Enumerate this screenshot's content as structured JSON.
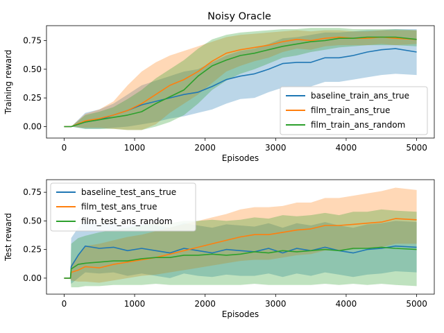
{
  "chart_data": [
    {
      "type": "line",
      "title": "Noisy Oracle",
      "xlabel": "Episodes",
      "ylabel": "Training reward",
      "xlim": [
        -250,
        5250
      ],
      "ylim": [
        -0.1,
        0.88
      ],
      "xticks": [
        0,
        1000,
        2000,
        3000,
        4000,
        5000
      ],
      "yticks": [
        0.0,
        0.25,
        0.5,
        0.75
      ],
      "ytick_labels": [
        "0.00",
        "0.25",
        "0.50",
        "0.75"
      ],
      "legend_position": "lower right",
      "x": [
        0,
        100,
        300,
        500,
        700,
        900,
        1100,
        1300,
        1500,
        1700,
        1900,
        2100,
        2300,
        2500,
        2700,
        2900,
        3100,
        3300,
        3500,
        3700,
        3900,
        4100,
        4300,
        4500,
        4700,
        5000
      ],
      "series": [
        {
          "name": "baseline_train_ans_true",
          "color": "#1f77b4",
          "values": [
            0.0,
            0.0,
            0.04,
            0.06,
            0.1,
            0.14,
            0.19,
            0.22,
            0.25,
            0.28,
            0.3,
            0.35,
            0.41,
            0.44,
            0.46,
            0.5,
            0.55,
            0.56,
            0.56,
            0.6,
            0.6,
            0.62,
            0.65,
            0.67,
            0.68,
            0.65
          ],
          "lower": [
            0.0,
            0.0,
            -0.02,
            -0.02,
            -0.01,
            0.0,
            0.02,
            0.04,
            0.07,
            0.09,
            0.12,
            0.15,
            0.2,
            0.24,
            0.25,
            0.3,
            0.34,
            0.35,
            0.35,
            0.39,
            0.39,
            0.41,
            0.43,
            0.45,
            0.46,
            0.45
          ],
          "upper": [
            0.0,
            0.0,
            0.12,
            0.15,
            0.2,
            0.28,
            0.36,
            0.4,
            0.44,
            0.48,
            0.5,
            0.56,
            0.62,
            0.66,
            0.68,
            0.72,
            0.77,
            0.78,
            0.8,
            0.82,
            0.82,
            0.83,
            0.84,
            0.84,
            0.85,
            0.85
          ]
        },
        {
          "name": "film_train_ans_true",
          "color": "#ff7f0e",
          "values": [
            0.0,
            0.0,
            0.05,
            0.07,
            0.1,
            0.14,
            0.2,
            0.28,
            0.36,
            0.41,
            0.48,
            0.57,
            0.64,
            0.67,
            0.69,
            0.71,
            0.74,
            0.76,
            0.75,
            0.77,
            0.78,
            0.77,
            0.77,
            0.78,
            0.77,
            0.76
          ],
          "lower": [
            0.0,
            0.0,
            -0.01,
            -0.01,
            -0.02,
            -0.03,
            -0.03,
            0.02,
            0.12,
            0.2,
            0.28,
            0.38,
            0.48,
            0.53,
            0.57,
            0.6,
            0.65,
            0.68,
            0.67,
            0.7,
            0.71,
            0.71,
            0.71,
            0.72,
            0.71,
            0.72
          ],
          "upper": [
            0.0,
            0.0,
            0.11,
            0.15,
            0.22,
            0.36,
            0.48,
            0.56,
            0.62,
            0.66,
            0.7,
            0.74,
            0.78,
            0.8,
            0.81,
            0.82,
            0.83,
            0.84,
            0.83,
            0.84,
            0.84,
            0.83,
            0.83,
            0.84,
            0.84,
            0.84
          ]
        },
        {
          "name": "film_train_ans_random",
          "color": "#2ca02c",
          "values": [
            0.0,
            0.0,
            0.04,
            0.06,
            0.08,
            0.1,
            0.13,
            0.2,
            0.26,
            0.32,
            0.44,
            0.53,
            0.58,
            0.62,
            0.64,
            0.67,
            0.7,
            0.72,
            0.74,
            0.75,
            0.77,
            0.77,
            0.78,
            0.78,
            0.78,
            0.76
          ],
          "lower": [
            0.0,
            0.0,
            -0.02,
            -0.02,
            -0.02,
            -0.03,
            -0.03,
            0.0,
            0.04,
            0.1,
            0.2,
            0.32,
            0.4,
            0.46,
            0.5,
            0.55,
            0.6,
            0.62,
            0.65,
            0.67,
            0.69,
            0.7,
            0.71,
            0.71,
            0.71,
            0.7
          ],
          "upper": [
            0.0,
            0.0,
            0.1,
            0.13,
            0.17,
            0.24,
            0.32,
            0.42,
            0.5,
            0.58,
            0.68,
            0.76,
            0.8,
            0.82,
            0.83,
            0.84,
            0.85,
            0.85,
            0.86,
            0.86,
            0.86,
            0.85,
            0.85,
            0.85,
            0.85,
            0.84
          ]
        }
      ]
    },
    {
      "type": "line",
      "title": "",
      "xlabel": "Episodes",
      "ylabel": "Test reward",
      "xlim": [
        -250,
        5250
      ],
      "ylim": [
        -0.14,
        0.86
      ],
      "xticks": [
        0,
        1000,
        2000,
        3000,
        4000,
        5000
      ],
      "yticks": [
        0.0,
        0.25,
        0.5,
        0.75
      ],
      "ytick_labels": [
        "0.00",
        "0.25",
        "0.50",
        "0.75"
      ],
      "legend_position": "upper left",
      "x": [
        0,
        90,
        100,
        200,
        300,
        500,
        700,
        900,
        1100,
        1300,
        1500,
        1700,
        1900,
        2100,
        2300,
        2500,
        2700,
        2900,
        3100,
        3300,
        3500,
        3700,
        3900,
        4100,
        4300,
        4500,
        4700,
        5000
      ],
      "series": [
        {
          "name": "baseline_test_ans_true",
          "color": "#1f77b4",
          "values": [
            0.0,
            0.0,
            0.1,
            0.2,
            0.28,
            0.26,
            0.27,
            0.24,
            0.26,
            0.24,
            0.22,
            0.26,
            0.24,
            0.22,
            0.25,
            0.24,
            0.23,
            0.26,
            0.22,
            0.26,
            0.24,
            0.27,
            0.24,
            0.22,
            0.25,
            0.26,
            0.28,
            0.27
          ],
          "lower": [
            0.0,
            0.0,
            -0.05,
            0.0,
            0.05,
            0.04,
            0.05,
            0.02,
            0.04,
            0.02,
            0.0,
            0.04,
            0.02,
            0.01,
            0.03,
            0.02,
            0.02,
            0.04,
            0.01,
            0.04,
            0.02,
            0.05,
            0.03,
            0.01,
            0.03,
            0.04,
            0.06,
            0.05
          ],
          "upper": [
            0.0,
            0.0,
            0.35,
            0.44,
            0.5,
            0.48,
            0.48,
            0.46,
            0.48,
            0.46,
            0.44,
            0.48,
            0.46,
            0.44,
            0.47,
            0.46,
            0.45,
            0.48,
            0.44,
            0.48,
            0.46,
            0.49,
            0.46,
            0.44,
            0.47,
            0.48,
            0.5,
            0.49
          ]
        },
        {
          "name": "film_test_ans_true",
          "color": "#ff7f0e",
          "values": [
            0.0,
            0.0,
            0.05,
            0.07,
            0.1,
            0.09,
            0.12,
            0.14,
            0.16,
            0.18,
            0.21,
            0.24,
            0.27,
            0.3,
            0.33,
            0.36,
            0.38,
            0.38,
            0.4,
            0.42,
            0.43,
            0.46,
            0.46,
            0.47,
            0.48,
            0.49,
            0.52,
            0.51
          ],
          "lower": [
            0.0,
            0.0,
            -0.02,
            -0.03,
            -0.03,
            -0.04,
            -0.02,
            0.0,
            0.02,
            0.03,
            0.05,
            0.07,
            0.09,
            0.11,
            0.13,
            0.15,
            0.16,
            0.16,
            0.18,
            0.2,
            0.21,
            0.24,
            0.24,
            0.25,
            0.26,
            0.27,
            0.3,
            0.3
          ],
          "upper": [
            0.0,
            0.0,
            0.12,
            0.2,
            0.28,
            0.3,
            0.33,
            0.36,
            0.38,
            0.41,
            0.44,
            0.47,
            0.5,
            0.53,
            0.56,
            0.6,
            0.62,
            0.62,
            0.63,
            0.66,
            0.66,
            0.7,
            0.7,
            0.72,
            0.74,
            0.76,
            0.79,
            0.77
          ]
        },
        {
          "name": "film_test_ans_random",
          "color": "#2ca02c",
          "values": [
            0.0,
            0.0,
            0.08,
            0.12,
            0.13,
            0.14,
            0.15,
            0.15,
            0.17,
            0.18,
            0.18,
            0.2,
            0.2,
            0.21,
            0.2,
            0.21,
            0.23,
            0.22,
            0.24,
            0.23,
            0.24,
            0.25,
            0.24,
            0.26,
            0.26,
            0.27,
            0.26,
            0.25
          ],
          "lower": [
            0.0,
            0.0,
            -0.08,
            -0.08,
            -0.07,
            -0.07,
            -0.06,
            -0.06,
            -0.06,
            -0.05,
            -0.06,
            -0.06,
            -0.06,
            -0.06,
            -0.06,
            -0.06,
            -0.05,
            -0.06,
            -0.06,
            -0.06,
            -0.06,
            -0.05,
            -0.06,
            -0.05,
            -0.06,
            -0.05,
            -0.06,
            -0.07
          ],
          "upper": [
            0.0,
            0.0,
            0.3,
            0.35,
            0.37,
            0.4,
            0.42,
            0.44,
            0.46,
            0.48,
            0.48,
            0.5,
            0.5,
            0.51,
            0.5,
            0.51,
            0.53,
            0.52,
            0.55,
            0.54,
            0.55,
            0.57,
            0.55,
            0.58,
            0.58,
            0.6,
            0.59,
            0.58
          ]
        }
      ]
    }
  ]
}
